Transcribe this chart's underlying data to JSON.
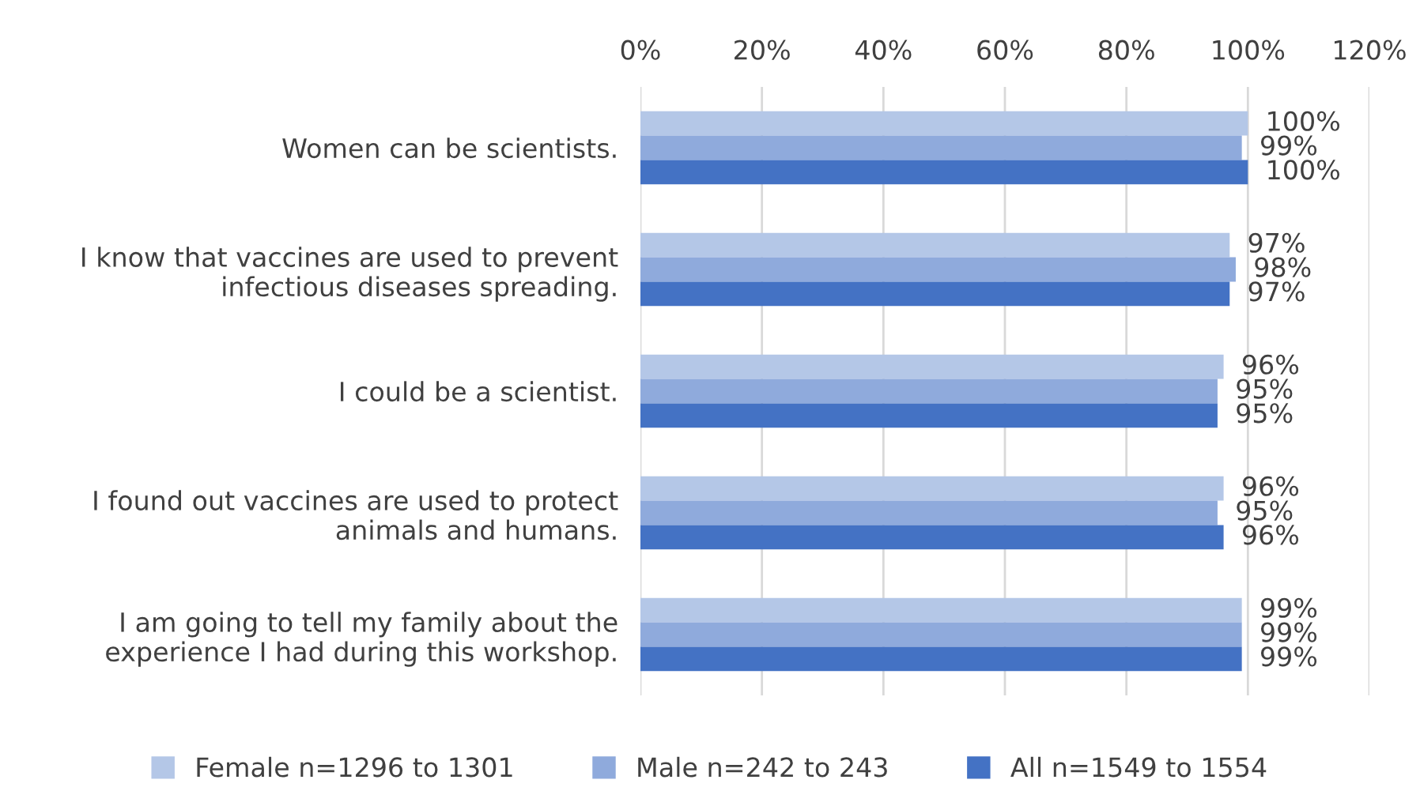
{
  "chart_data": {
    "type": "bar",
    "orientation": "horizontal",
    "categories": [
      "Women can be scientists.",
      "I know that vaccines are used to prevent\ninfectious diseases spreading.",
      "I could be a scientist.",
      "I found out vaccines are used to protect\nanimals and humans.",
      "I am going to tell my family about the\nexperience I had during this workshop."
    ],
    "series": [
      {
        "name": "Female n=1296 to 1301",
        "color": "#b4c7e7",
        "values": [
          100,
          97,
          96,
          96,
          99
        ],
        "value_labels": [
          "100%",
          "97%",
          "96%",
          "96%",
          "99%"
        ]
      },
      {
        "name": "Male n=242 to 243",
        "color": "#8faadc",
        "values": [
          99,
          98,
          95,
          95,
          99
        ],
        "value_labels": [
          "99%",
          "98%",
          "95%",
          "95%",
          "99%"
        ]
      },
      {
        "name": "All n=1549 to 1554",
        "color": "#4472c4",
        "values": [
          100,
          97,
          95,
          96,
          99
        ],
        "value_labels": [
          "100%",
          "97%",
          "95%",
          "96%",
          "99%"
        ]
      }
    ],
    "xlim": [
      0,
      120
    ],
    "xticks": [
      {
        "value": 0,
        "label": "0%"
      },
      {
        "value": 20,
        "label": "20%"
      },
      {
        "value": 40,
        "label": "40%"
      },
      {
        "value": 60,
        "label": "60%"
      },
      {
        "value": 80,
        "label": "80%"
      },
      {
        "value": 100,
        "label": "100%"
      },
      {
        "value": 120,
        "label": "120%"
      }
    ],
    "grid": "x",
    "legend": "bottom"
  }
}
